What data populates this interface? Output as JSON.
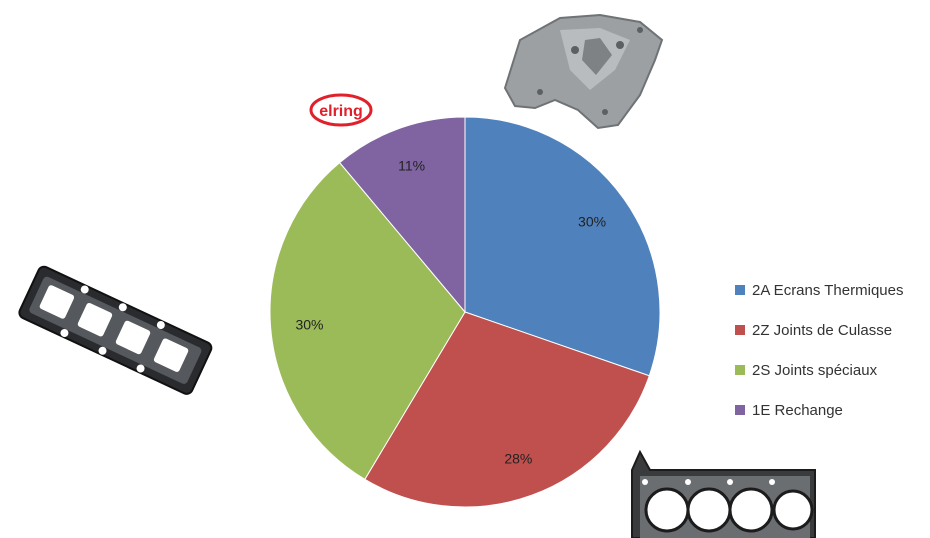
{
  "logo": {
    "text": "elring",
    "color": "#e0202a"
  },
  "chart_data": {
    "type": "pie",
    "categories": [
      "2A Ecrans Thermiques",
      "2Z Joints de Culasse",
      "2S Joints spéciaux",
      "1E Rechange"
    ],
    "values": [
      30,
      28,
      30,
      11
    ],
    "labels": [
      "30%",
      "28%",
      "30%",
      "11%"
    ],
    "colors": [
      "#4f81bd",
      "#c0504d",
      "#9bbb59",
      "#8064a2"
    ],
    "legend_position": "right"
  },
  "illustrations": [
    {
      "name": "heat-shield-photo"
    },
    {
      "name": "exhaust-manifold-gasket-photo"
    },
    {
      "name": "cylinder-head-gasket-photo"
    }
  ]
}
